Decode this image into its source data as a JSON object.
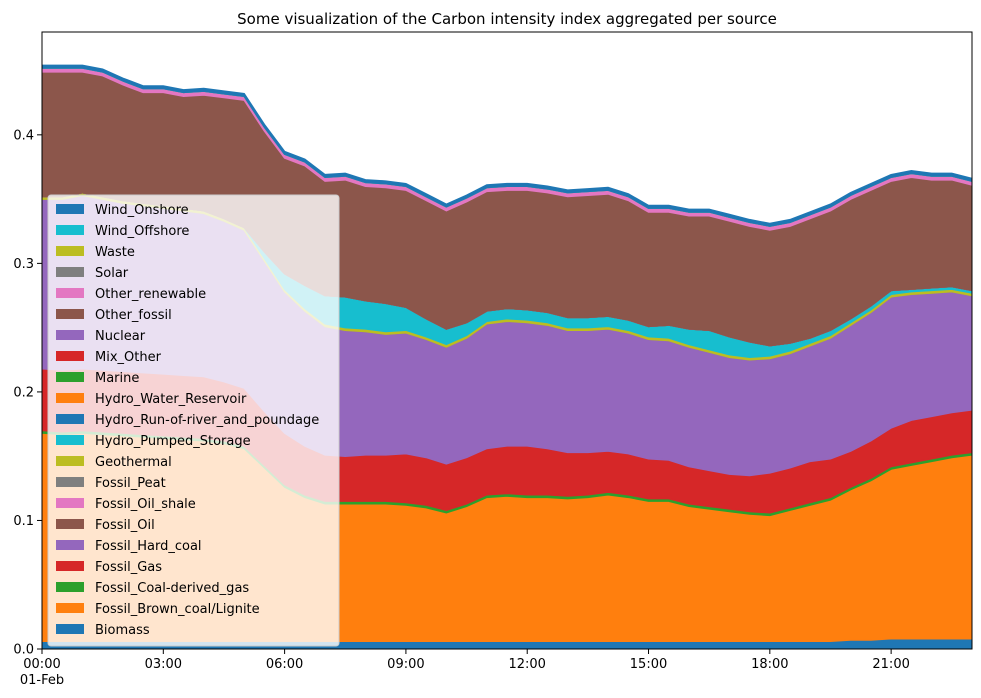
{
  "chart_data": {
    "type": "area",
    "stacked": true,
    "title": "Some visualization of the Carbon intensity index aggregated per source",
    "xlabel": "",
    "ylabel": "",
    "x_range_hours": [
      0,
      23
    ],
    "ylim": [
      0,
      0.48
    ],
    "x_ticks": [
      {
        "hour": 0,
        "label": "00:00",
        "sublabel": "01-Feb"
      },
      {
        "hour": 3,
        "label": "03:00",
        "sublabel": ""
      },
      {
        "hour": 6,
        "label": "06:00",
        "sublabel": ""
      },
      {
        "hour": 9,
        "label": "09:00",
        "sublabel": ""
      },
      {
        "hour": 12,
        "label": "12:00",
        "sublabel": ""
      },
      {
        "hour": 15,
        "label": "15:00",
        "sublabel": ""
      },
      {
        "hour": 18,
        "label": "18:00",
        "sublabel": ""
      },
      {
        "hour": 21,
        "label": "21:00",
        "sublabel": ""
      }
    ],
    "y_ticks": [
      {
        "value": 0.0,
        "label": "0.0"
      },
      {
        "value": 0.1,
        "label": "0.1"
      },
      {
        "value": 0.2,
        "label": "0.2"
      },
      {
        "value": 0.3,
        "label": "0.3"
      },
      {
        "value": 0.4,
        "label": "0.4"
      }
    ],
    "legend_position": "lower-left",
    "x": [
      0,
      0.5,
      1,
      1.5,
      2,
      2.5,
      3,
      3.5,
      4,
      4.5,
      5,
      5.5,
      6,
      6.5,
      7,
      7.5,
      8,
      8.5,
      9,
      9.5,
      10,
      10.5,
      11,
      11.5,
      12,
      12.5,
      13,
      13.5,
      14,
      14.5,
      15,
      15.5,
      16,
      16.5,
      17,
      17.5,
      18,
      18.5,
      19,
      19.5,
      20,
      20.5,
      21,
      21.5,
      22,
      22.5,
      23
    ],
    "series": [
      {
        "name": "Biomass",
        "color": "#1f77b4",
        "values": [
          0.006,
          0.006,
          0.006,
          0.006,
          0.006,
          0.006,
          0.006,
          0.006,
          0.006,
          0.006,
          0.006,
          0.006,
          0.006,
          0.006,
          0.006,
          0.006,
          0.006,
          0.006,
          0.006,
          0.006,
          0.006,
          0.006,
          0.006,
          0.006,
          0.006,
          0.006,
          0.006,
          0.006,
          0.006,
          0.006,
          0.006,
          0.006,
          0.006,
          0.006,
          0.006,
          0.006,
          0.006,
          0.006,
          0.006,
          0.006,
          0.007,
          0.007,
          0.008,
          0.008,
          0.008,
          0.008,
          0.008
        ]
      },
      {
        "name": "Fossil_Brown_coal/Lignite",
        "color": "#ff7f0e",
        "values": [
          0.162,
          0.161,
          0.162,
          0.161,
          0.16,
          0.159,
          0.158,
          0.157,
          0.156,
          0.154,
          0.15,
          0.135,
          0.12,
          0.112,
          0.107,
          0.107,
          0.107,
          0.107,
          0.106,
          0.104,
          0.1,
          0.105,
          0.112,
          0.113,
          0.112,
          0.112,
          0.111,
          0.112,
          0.114,
          0.112,
          0.109,
          0.109,
          0.105,
          0.103,
          0.101,
          0.099,
          0.098,
          0.102,
          0.106,
          0.11,
          0.117,
          0.124,
          0.132,
          0.135,
          0.138,
          0.141,
          0.143
        ]
      },
      {
        "name": "Fossil_Coal-derived_gas",
        "color": "#2ca02c",
        "values": [
          0.002,
          0.002,
          0.002,
          0.002,
          0.002,
          0.002,
          0.002,
          0.002,
          0.002,
          0.002,
          0.002,
          0.002,
          0.002,
          0.002,
          0.002,
          0.002,
          0.002,
          0.002,
          0.002,
          0.002,
          0.002,
          0.002,
          0.002,
          0.002,
          0.002,
          0.002,
          0.002,
          0.002,
          0.002,
          0.002,
          0.002,
          0.002,
          0.002,
          0.002,
          0.002,
          0.002,
          0.002,
          0.002,
          0.002,
          0.002,
          0.002,
          0.002,
          0.002,
          0.002,
          0.002,
          0.002,
          0.002
        ]
      },
      {
        "name": "Fossil_Gas",
        "color": "#d62728",
        "values": [
          0.048,
          0.048,
          0.048,
          0.048,
          0.048,
          0.048,
          0.048,
          0.048,
          0.048,
          0.046,
          0.045,
          0.042,
          0.04,
          0.038,
          0.036,
          0.035,
          0.036,
          0.036,
          0.038,
          0.037,
          0.036,
          0.036,
          0.036,
          0.037,
          0.038,
          0.036,
          0.034,
          0.033,
          0.032,
          0.032,
          0.031,
          0.03,
          0.029,
          0.028,
          0.027,
          0.028,
          0.031,
          0.031,
          0.032,
          0.03,
          0.028,
          0.029,
          0.03,
          0.033,
          0.033,
          0.033,
          0.033
        ]
      },
      {
        "name": "Fossil_Hard_coal",
        "color": "#9467bd",
        "values": [
          0.132,
          0.133,
          0.135,
          0.133,
          0.131,
          0.13,
          0.129,
          0.128,
          0.127,
          0.125,
          0.123,
          0.117,
          0.11,
          0.105,
          0.1,
          0.098,
          0.096,
          0.094,
          0.094,
          0.092,
          0.091,
          0.093,
          0.097,
          0.097,
          0.096,
          0.096,
          0.095,
          0.095,
          0.095,
          0.094,
          0.093,
          0.093,
          0.093,
          0.092,
          0.091,
          0.09,
          0.089,
          0.089,
          0.09,
          0.094,
          0.098,
          0.1,
          0.102,
          0.098,
          0.096,
          0.094,
          0.089
        ]
      },
      {
        "name": "Fossil_Oil",
        "color": "#8c564b",
        "values": [
          0.0,
          0.0,
          0.0,
          0.0,
          0.0,
          0.0,
          0.0,
          0.0,
          0.0,
          0.0,
          0.0,
          0.0,
          0.0,
          0.0,
          0.0,
          0.0,
          0.0,
          0.0,
          0.0,
          0.0,
          0.0,
          0.0,
          0.0,
          0.0,
          0.0,
          0.0,
          0.0,
          0.0,
          0.0,
          0.0,
          0.0,
          0.0,
          0.0,
          0.0,
          0.0,
          0.0,
          0.0,
          0.0,
          0.0,
          0.0,
          0.0,
          0.0,
          0.0,
          0.0,
          0.0,
          0.0,
          0.0
        ]
      },
      {
        "name": "Fossil_Oil_shale",
        "color": "#e377c2",
        "values": [
          0.0,
          0.0,
          0.0,
          0.0,
          0.0,
          0.0,
          0.0,
          0.0,
          0.0,
          0.0,
          0.0,
          0.0,
          0.0,
          0.0,
          0.0,
          0.0,
          0.0,
          0.0,
          0.0,
          0.0,
          0.0,
          0.0,
          0.0,
          0.0,
          0.0,
          0.0,
          0.0,
          0.0,
          0.0,
          0.0,
          0.0,
          0.0,
          0.0,
          0.0,
          0.0,
          0.0,
          0.0,
          0.0,
          0.0,
          0.0,
          0.0,
          0.0,
          0.0,
          0.0,
          0.0,
          0.0,
          0.0
        ]
      },
      {
        "name": "Fossil_Peat",
        "color": "#7f7f7f",
        "values": [
          0.0,
          0.0,
          0.0,
          0.0,
          0.0,
          0.0,
          0.0,
          0.0,
          0.0,
          0.0,
          0.0,
          0.0,
          0.0,
          0.0,
          0.0,
          0.0,
          0.0,
          0.0,
          0.0,
          0.0,
          0.0,
          0.0,
          0.0,
          0.0,
          0.0,
          0.0,
          0.0,
          0.0,
          0.0,
          0.0,
          0.0,
          0.0,
          0.0,
          0.0,
          0.0,
          0.0,
          0.0,
          0.0,
          0.0,
          0.0,
          0.0,
          0.0,
          0.0,
          0.0,
          0.0,
          0.0,
          0.0
        ]
      },
      {
        "name": "Geothermal",
        "color": "#bcbd22",
        "values": [
          0.002,
          0.002,
          0.002,
          0.002,
          0.002,
          0.002,
          0.002,
          0.002,
          0.002,
          0.002,
          0.002,
          0.002,
          0.002,
          0.002,
          0.002,
          0.002,
          0.002,
          0.002,
          0.002,
          0.002,
          0.002,
          0.002,
          0.002,
          0.002,
          0.002,
          0.002,
          0.002,
          0.002,
          0.002,
          0.002,
          0.002,
          0.002,
          0.002,
          0.002,
          0.002,
          0.002,
          0.002,
          0.002,
          0.002,
          0.002,
          0.002,
          0.002,
          0.002,
          0.002,
          0.002,
          0.002,
          0.002
        ]
      },
      {
        "name": "Hydro_Pumped_Storage",
        "color": "#17becf",
        "values": [
          0.0,
          0.0,
          0.0,
          0.0,
          0.0,
          0.0,
          0.0,
          0.0,
          0.0,
          0.0,
          0.0,
          0.005,
          0.012,
          0.018,
          0.022,
          0.024,
          0.022,
          0.022,
          0.018,
          0.014,
          0.012,
          0.01,
          0.008,
          0.008,
          0.008,
          0.008,
          0.008,
          0.008,
          0.008,
          0.008,
          0.008,
          0.01,
          0.012,
          0.015,
          0.014,
          0.012,
          0.008,
          0.006,
          0.004,
          0.004,
          0.003,
          0.003,
          0.003,
          0.002,
          0.002,
          0.002,
          0.002
        ]
      },
      {
        "name": "Hydro_Run-of-river_and_poundage",
        "color": "#1f77b4",
        "values": [
          0.0,
          0.0,
          0.0,
          0.0,
          0.0,
          0.0,
          0.0,
          0.0,
          0.0,
          0.0,
          0.0,
          0.0,
          0.0,
          0.0,
          0.0,
          0.0,
          0.0,
          0.0,
          0.0,
          0.0,
          0.0,
          0.0,
          0.0,
          0.0,
          0.0,
          0.0,
          0.0,
          0.0,
          0.0,
          0.0,
          0.0,
          0.0,
          0.0,
          0.0,
          0.0,
          0.0,
          0.0,
          0.0,
          0.0,
          0.0,
          0.0,
          0.0,
          0.0,
          0.0,
          0.0,
          0.0,
          0.0
        ]
      },
      {
        "name": "Hydro_Water_Reservoir",
        "color": "#ff7f0e",
        "values": [
          0.0,
          0.0,
          0.0,
          0.0,
          0.0,
          0.0,
          0.0,
          0.0,
          0.0,
          0.0,
          0.0,
          0.0,
          0.0,
          0.0,
          0.0,
          0.0,
          0.0,
          0.0,
          0.0,
          0.0,
          0.0,
          0.0,
          0.0,
          0.0,
          0.0,
          0.0,
          0.0,
          0.0,
          0.0,
          0.0,
          0.0,
          0.0,
          0.0,
          0.0,
          0.0,
          0.0,
          0.0,
          0.0,
          0.0,
          0.0,
          0.0,
          0.0,
          0.0,
          0.0,
          0.0,
          0.0,
          0.0
        ]
      },
      {
        "name": "Marine",
        "color": "#2ca02c",
        "values": [
          0.0,
          0.0,
          0.0,
          0.0,
          0.0,
          0.0,
          0.0,
          0.0,
          0.0,
          0.0,
          0.0,
          0.0,
          0.0,
          0.0,
          0.0,
          0.0,
          0.0,
          0.0,
          0.0,
          0.0,
          0.0,
          0.0,
          0.0,
          0.0,
          0.0,
          0.0,
          0.0,
          0.0,
          0.0,
          0.0,
          0.0,
          0.0,
          0.0,
          0.0,
          0.0,
          0.0,
          0.0,
          0.0,
          0.0,
          0.0,
          0.0,
          0.0,
          0.0,
          0.0,
          0.0,
          0.0,
          0.0
        ]
      },
      {
        "name": "Mix_Other",
        "color": "#d62728",
        "values": [
          0.0,
          0.0,
          0.0,
          0.0,
          0.0,
          0.0,
          0.0,
          0.0,
          0.0,
          0.0,
          0.0,
          0.0,
          0.0,
          0.0,
          0.0,
          0.0,
          0.0,
          0.0,
          0.0,
          0.0,
          0.0,
          0.0,
          0.0,
          0.0,
          0.0,
          0.0,
          0.0,
          0.0,
          0.0,
          0.0,
          0.0,
          0.0,
          0.0,
          0.0,
          0.0,
          0.0,
          0.0,
          0.0,
          0.0,
          0.0,
          0.0,
          0.0,
          0.0,
          0.0,
          0.0,
          0.0,
          0.0
        ]
      },
      {
        "name": "Nuclear",
        "color": "#9467bd",
        "values": [
          0.0,
          0.0,
          0.0,
          0.0,
          0.0,
          0.0,
          0.0,
          0.0,
          0.0,
          0.0,
          0.0,
          0.0,
          0.0,
          0.0,
          0.0,
          0.0,
          0.0,
          0.0,
          0.0,
          0.0,
          0.0,
          0.0,
          0.0,
          0.0,
          0.0,
          0.0,
          0.0,
          0.0,
          0.0,
          0.0,
          0.0,
          0.0,
          0.0,
          0.0,
          0.0,
          0.0,
          0.0,
          0.0,
          0.0,
          0.0,
          0.0,
          0.0,
          0.0,
          0.0,
          0.0,
          0.0,
          0.0
        ]
      },
      {
        "name": "Other_fossil",
        "color": "#8c564b",
        "values": [
          0.097,
          0.097,
          0.094,
          0.094,
          0.09,
          0.086,
          0.088,
          0.087,
          0.09,
          0.094,
          0.099,
          0.094,
          0.09,
          0.093,
          0.089,
          0.091,
          0.089,
          0.09,
          0.091,
          0.092,
          0.092,
          0.094,
          0.093,
          0.092,
          0.093,
          0.093,
          0.094,
          0.095,
          0.095,
          0.093,
          0.089,
          0.088,
          0.088,
          0.089,
          0.09,
          0.09,
          0.09,
          0.091,
          0.093,
          0.093,
          0.093,
          0.09,
          0.085,
          0.087,
          0.084,
          0.083,
          0.082
        ]
      },
      {
        "name": "Other_renewable",
        "color": "#e377c2",
        "values": [
          0.003,
          0.003,
          0.003,
          0.003,
          0.003,
          0.003,
          0.003,
          0.003,
          0.003,
          0.003,
          0.003,
          0.003,
          0.003,
          0.003,
          0.003,
          0.003,
          0.003,
          0.003,
          0.003,
          0.003,
          0.003,
          0.003,
          0.003,
          0.003,
          0.003,
          0.003,
          0.003,
          0.003,
          0.003,
          0.003,
          0.003,
          0.003,
          0.003,
          0.003,
          0.003,
          0.003,
          0.003,
          0.003,
          0.003,
          0.003,
          0.003,
          0.003,
          0.003,
          0.003,
          0.003,
          0.003,
          0.003
        ]
      },
      {
        "name": "Solar",
        "color": "#7f7f7f",
        "values": [
          0.0,
          0.0,
          0.0,
          0.0,
          0.0,
          0.0,
          0.0,
          0.0,
          0.0,
          0.0,
          0.0,
          0.0,
          0.0,
          0.0,
          0.0,
          0.0,
          0.0,
          0.0,
          0.0,
          0.0,
          0.0,
          0.0,
          0.0,
          0.0,
          0.0,
          0.0,
          0.0,
          0.0,
          0.0,
          0.0,
          0.0,
          0.0,
          0.0,
          0.0,
          0.0,
          0.0,
          0.0,
          0.0,
          0.0,
          0.0,
          0.0,
          0.0,
          0.0,
          0.0,
          0.0,
          0.0,
          0.0
        ]
      },
      {
        "name": "Waste",
        "color": "#bcbd22",
        "values": [
          0.0,
          0.0,
          0.0,
          0.0,
          0.0,
          0.0,
          0.0,
          0.0,
          0.0,
          0.0,
          0.0,
          0.0,
          0.0,
          0.0,
          0.0,
          0.0,
          0.0,
          0.0,
          0.0,
          0.0,
          0.0,
          0.0,
          0.0,
          0.0,
          0.0,
          0.0,
          0.0,
          0.0,
          0.0,
          0.0,
          0.0,
          0.0,
          0.0,
          0.0,
          0.0,
          0.0,
          0.0,
          0.0,
          0.0,
          0.0,
          0.0,
          0.0,
          0.0,
          0.0,
          0.0,
          0.0,
          0.0
        ]
      },
      {
        "name": "Wind_Offshore",
        "color": "#17becf",
        "values": [
          0.0,
          0.0,
          0.0,
          0.0,
          0.0,
          0.0,
          0.0,
          0.0,
          0.0,
          0.0,
          0.0,
          0.0,
          0.0,
          0.0,
          0.0,
          0.0,
          0.0,
          0.0,
          0.0,
          0.0,
          0.0,
          0.0,
          0.0,
          0.0,
          0.0,
          0.0,
          0.0,
          0.0,
          0.0,
          0.0,
          0.0,
          0.0,
          0.0,
          0.0,
          0.0,
          0.0,
          0.0,
          0.0,
          0.0,
          0.0,
          0.0,
          0.0,
          0.0,
          0.0,
          0.0,
          0.0,
          0.0
        ]
      },
      {
        "name": "Wind_Onshore",
        "color": "#1f77b4",
        "values": [
          0.002,
          0.002,
          0.002,
          0.002,
          0.002,
          0.002,
          0.002,
          0.002,
          0.002,
          0.002,
          0.002,
          0.002,
          0.002,
          0.002,
          0.002,
          0.002,
          0.002,
          0.002,
          0.002,
          0.002,
          0.002,
          0.002,
          0.002,
          0.002,
          0.002,
          0.002,
          0.002,
          0.002,
          0.002,
          0.002,
          0.002,
          0.002,
          0.002,
          0.002,
          0.002,
          0.002,
          0.002,
          0.002,
          0.002,
          0.002,
          0.002,
          0.002,
          0.002,
          0.002,
          0.002,
          0.002,
          0.002
        ]
      }
    ]
  }
}
